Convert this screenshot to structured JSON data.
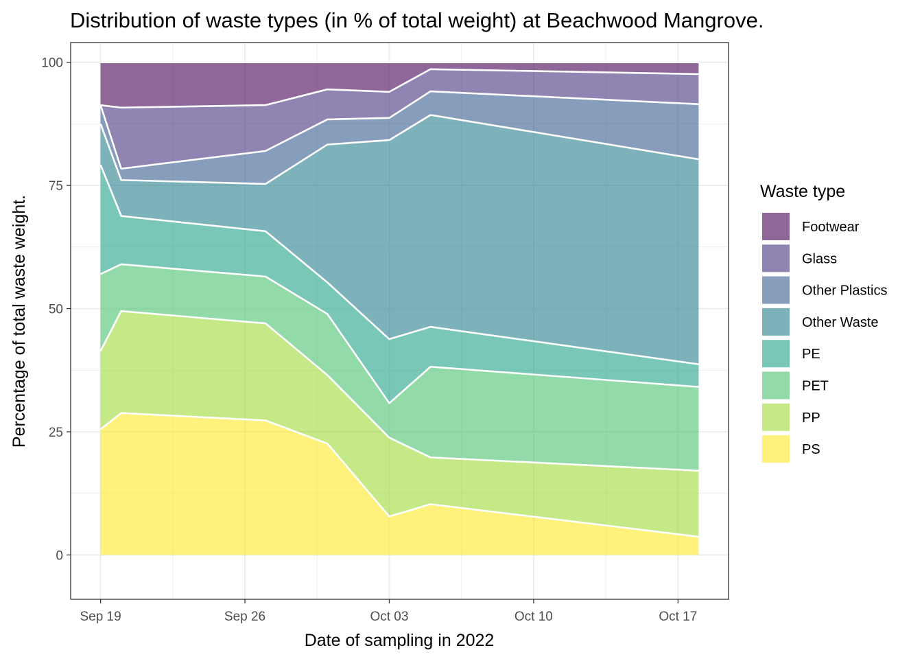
{
  "chart_data": {
    "type": "area",
    "stacked": true,
    "title": "Distribution of waste types (in % of total weight) at Beachwood Mangrove.",
    "xlabel": "Date of sampling in 2022",
    "ylabel": "Percentage of total waste weight.",
    "x": [
      "2022-09-19",
      "2022-09-20",
      "2022-09-27",
      "2022-09-30",
      "2022-10-03",
      "2022-10-05",
      "2022-10-18"
    ],
    "xlim": [
      "2022-09-19",
      "2022-10-18"
    ],
    "x_ticks": [
      {
        "date": "2022-09-19",
        "label": "Sep 19"
      },
      {
        "date": "2022-09-26",
        "label": "Sep 26"
      },
      {
        "date": "2022-10-03",
        "label": "Oct 03"
      },
      {
        "date": "2022-10-10",
        "label": "Oct 10"
      },
      {
        "date": "2022-10-17",
        "label": "Oct 17"
      }
    ],
    "ylim": [
      -9,
      104
    ],
    "y_ticks": [
      0,
      25,
      50,
      75,
      100
    ],
    "grid": true,
    "legend": {
      "title": "Waste type",
      "position": "right"
    },
    "series": [
      {
        "name": "PS",
        "color": "#FDE725",
        "values": [
          25.5,
          28.8,
          27.3,
          22.6,
          7.8,
          10.3,
          3.7
        ]
      },
      {
        "name": "PP",
        "color": "#A0DA39",
        "values": [
          15.9,
          20.7,
          19.7,
          13.9,
          16.0,
          9.5,
          13.4
        ]
      },
      {
        "name": "PET",
        "color": "#4AC16D",
        "values": [
          15.6,
          9.5,
          9.5,
          12.4,
          7.0,
          18.4,
          17.0
        ]
      },
      {
        "name": "PE",
        "color": "#1FA187",
        "values": [
          22.2,
          9.8,
          9.2,
          6.4,
          13.0,
          8.1,
          4.6
        ]
      },
      {
        "name": "Other Waste",
        "color": "#277F8E",
        "values": [
          8.3,
          7.3,
          9.6,
          28.0,
          40.4,
          43.0,
          41.6
        ]
      },
      {
        "name": "Other Plastics",
        "color": "#365C8D",
        "values": [
          3.8,
          2.3,
          6.7,
          5.1,
          4.5,
          4.8,
          11.2
        ]
      },
      {
        "name": "Glass",
        "color": "#46337E",
        "values": [
          0.0,
          12.4,
          9.3,
          6.1,
          5.3,
          4.5,
          6.1
        ]
      },
      {
        "name": "Footwear",
        "color": "#440154",
        "values": [
          8.7,
          9.2,
          8.7,
          5.5,
          6.0,
          1.4,
          2.4
        ]
      }
    ],
    "fill_opacity": 0.6,
    "legend_order": [
      "Footwear",
      "Glass",
      "Other Plastics",
      "Other Waste",
      "PE",
      "PET",
      "PP",
      "PS"
    ]
  }
}
